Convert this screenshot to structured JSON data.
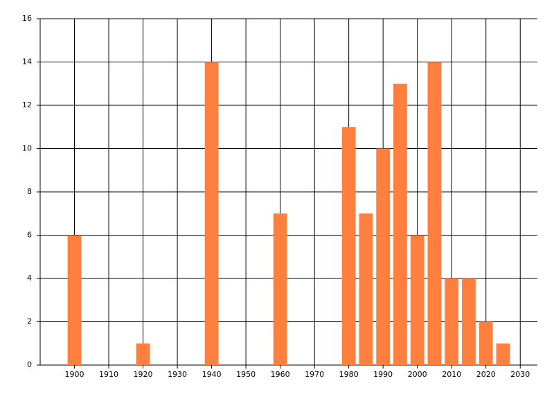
{
  "chart_data": {
    "type": "bar",
    "x": [
      1900,
      1920,
      1940,
      1960,
      1980,
      1985,
      1990,
      1995,
      2000,
      2005,
      2010,
      2015,
      2020,
      2025
    ],
    "values": [
      6,
      1,
      14,
      7,
      11,
      7,
      10,
      13,
      6,
      14,
      4,
      4,
      2,
      1
    ],
    "color": "#ff7f3f",
    "xlim": [
      1890,
      2035
    ],
    "xticks": [
      1900,
      1910,
      1920,
      1930,
      1940,
      1950,
      1960,
      1970,
      1980,
      1990,
      2000,
      2010,
      2020,
      2030
    ],
    "ylim": [
      0,
      16
    ],
    "yticks": [
      0,
      2,
      4,
      6,
      8,
      10,
      12,
      14,
      16
    ],
    "grid": true
  }
}
